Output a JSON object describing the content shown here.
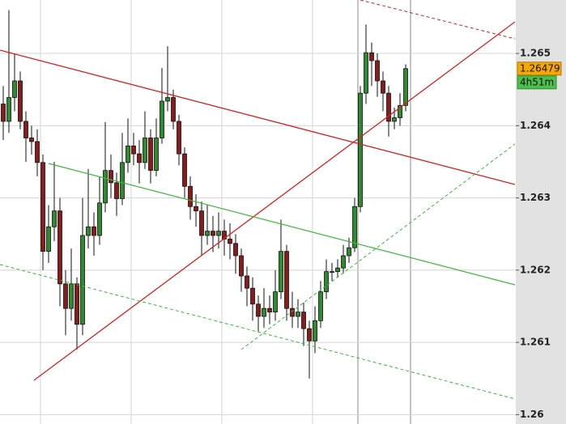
{
  "chart_data": {
    "type": "candlestick",
    "ylim": [
      1.25987,
      1.26574
    ],
    "yticks": [
      1.265,
      1.264,
      1.263,
      1.262,
      1.261,
      1.26
    ],
    "grid": true,
    "up_color": "#2e8b2e",
    "down_color": "#8b1a1a",
    "open": [
      1.2643,
      1.26406,
      1.26439,
      1.26462,
      1.26406,
      1.26383,
      1.26378,
      1.26349,
      1.26226,
      1.2626,
      1.26282,
      1.26181,
      1.26147,
      1.26181,
      1.26125,
      1.26248,
      1.2626,
      1.26248,
      1.26293,
      1.26338,
      1.26321,
      1.26299,
      1.26349,
      1.26372,
      1.26361,
      1.26349,
      1.26383,
      1.26338,
      1.26383,
      1.26434,
      1.26439,
      1.26406,
      1.26361,
      1.26316,
      1.26288,
      1.26282,
      1.26248,
      1.26254,
      1.26248,
      1.26254,
      1.26243,
      1.26237,
      1.2622,
      1.26192,
      1.26175,
      1.26153,
      1.26136,
      1.26147,
      1.26142,
      1.2617,
      1.26226,
      1.26147,
      1.26136,
      1.26142,
      1.26119,
      1.26102,
      1.2613,
      1.2617,
      1.26198,
      1.26198,
      1.26203,
      1.2622,
      1.26231,
      1.26288,
      1.26445,
      1.26501,
      1.2649,
      1.26462,
      1.26445,
      1.26406,
      1.26411,
      1.26428
    ],
    "high": [
      1.26455,
      1.2656,
      1.265,
      1.26475,
      1.2642,
      1.264,
      1.26395,
      1.2636,
      1.2629,
      1.2635,
      1.263,
      1.262,
      1.2623,
      1.2619,
      1.263,
      1.2634,
      1.2628,
      1.2633,
      1.26405,
      1.2636,
      1.26335,
      1.2639,
      1.2641,
      1.2639,
      1.2638,
      1.2642,
      1.26395,
      1.2641,
      1.2648,
      1.2651,
      1.2645,
      1.26415,
      1.2637,
      1.2633,
      1.26305,
      1.26295,
      1.2629,
      1.26275,
      1.2628,
      1.2627,
      1.26265,
      1.2625,
      1.2623,
      1.26205,
      1.2619,
      1.26165,
      1.26175,
      1.26165,
      1.262,
      1.2627,
      1.26235,
      1.2617,
      1.2616,
      1.26155,
      1.2613,
      1.2615,
      1.26185,
      1.26215,
      1.2621,
      1.26215,
      1.26235,
      1.26245,
      1.263,
      1.26455,
      1.2654,
      1.26515,
      1.265,
      1.26475,
      1.26455,
      1.26425,
      1.26445,
      1.26485
    ],
    "low": [
      1.2638,
      1.2639,
      1.2642,
      1.26395,
      1.2635,
      1.2636,
      1.2633,
      1.262,
      1.2621,
      1.2624,
      1.2615,
      1.2611,
      1.2613,
      1.2609,
      1.2611,
      1.2623,
      1.2622,
      1.26235,
      1.2628,
      1.263,
      1.26275,
      1.2629,
      1.26335,
      1.26345,
      1.2632,
      1.2634,
      1.2632,
      1.2633,
      1.26375,
      1.2642,
      1.26395,
      1.26345,
      1.263,
      1.2627,
      1.2626,
      1.2622,
      1.26235,
      1.26225,
      1.2623,
      1.2622,
      1.26215,
      1.26195,
      1.2617,
      1.2615,
      1.2613,
      1.26115,
      1.2612,
      1.26125,
      1.2613,
      1.2616,
      1.2613,
      1.2612,
      1.2612,
      1.26095,
      1.2605,
      1.26085,
      1.2612,
      1.2616,
      1.26185,
      1.2619,
      1.26195,
      1.2621,
      1.26225,
      1.2628,
      1.2643,
      1.26455,
      1.2644,
      1.2642,
      1.26385,
      1.26395,
      1.264,
      1.2642
    ],
    "close": [
      1.26406,
      1.26439,
      1.26462,
      1.26406,
      1.26383,
      1.26378,
      1.26349,
      1.26226,
      1.2626,
      1.26282,
      1.26181,
      1.26147,
      1.26181,
      1.26125,
      1.26248,
      1.2626,
      1.26248,
      1.26293,
      1.26338,
      1.26321,
      1.26299,
      1.26349,
      1.26372,
      1.26361,
      1.26349,
      1.26383,
      1.26338,
      1.26383,
      1.26434,
      1.26439,
      1.26406,
      1.26361,
      1.26316,
      1.26288,
      1.26282,
      1.26248,
      1.26254,
      1.26248,
      1.26254,
      1.26243,
      1.26237,
      1.2622,
      1.26192,
      1.26175,
      1.26153,
      1.26136,
      1.26147,
      1.26142,
      1.2617,
      1.26226,
      1.26147,
      1.26136,
      1.26142,
      1.26119,
      1.26102,
      1.2613,
      1.2617,
      1.26198,
      1.26198,
      1.26203,
      1.2622,
      1.26231,
      1.26288,
      1.26445,
      1.26501,
      1.2649,
      1.26462,
      1.26445,
      1.26406,
      1.26411,
      1.26428,
      1.26479
    ],
    "last_price": 1.26479,
    "countdown": "4h51m"
  }
}
